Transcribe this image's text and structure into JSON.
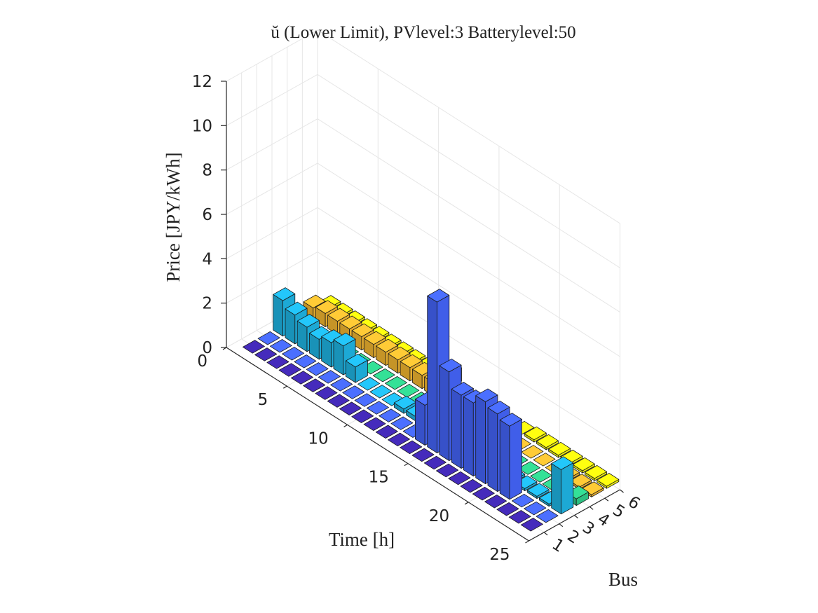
{
  "chart_data": {
    "type": "bar3d",
    "title": "ŭ (Lower Limit), PVlevel:3 Batterylevel:50",
    "xlabel": "Time [h]",
    "ylabel": "Bus",
    "zlabel": "Price [JPY/kWh]",
    "time_range": [
      0,
      25
    ],
    "bus_range": [
      0,
      6
    ],
    "zlim": [
      0,
      12
    ],
    "time_ticks": [
      0,
      5,
      10,
      15,
      20,
      25
    ],
    "bus_ticks": [
      1,
      2,
      3,
      4,
      5,
      6
    ],
    "z_ticks": [
      0,
      2,
      4,
      6,
      8,
      10,
      12
    ],
    "grid": true,
    "hours": [
      1,
      2,
      3,
      4,
      5,
      6,
      7,
      8,
      9,
      10,
      11,
      12,
      13,
      14,
      15,
      16,
      17,
      18,
      19,
      20,
      21,
      22,
      23,
      24
    ],
    "series": [
      {
        "bus": 1,
        "color": "#3e26a8",
        "values": [
          0,
          0,
          0,
          0,
          0,
          0,
          0,
          0,
          0,
          0,
          0,
          0,
          0,
          0,
          0,
          0,
          0,
          0,
          0,
          0,
          0,
          0,
          0,
          0
        ]
      },
      {
        "bus": 2,
        "color": "#4363f5",
        "values": [
          0,
          0,
          0,
          0,
          0,
          0,
          0,
          0,
          0,
          0,
          0,
          0,
          0,
          1.8,
          6.8,
          4.0,
          3.3,
          3.3,
          3.7,
          3.5,
          3.3,
          0.0,
          0.0,
          0.0
        ]
      },
      {
        "bus": 3,
        "color": "#1fb2e0",
        "values": [
          1.6,
          1.3,
          1.1,
          0.9,
          1.1,
          1.3,
          0.7,
          0.0,
          0.0,
          0.0,
          0.2,
          0.2,
          0.2,
          0.2,
          0.2,
          0.2,
          0.2,
          0.1,
          0.1,
          0.1,
          0.1,
          0.1,
          0.1,
          2.0
        ]
      },
      {
        "bus": 4,
        "color": "#2ec987",
        "values": [
          0,
          0,
          0,
          0,
          0,
          0,
          0,
          0,
          0,
          0,
          0,
          0,
          0,
          0,
          0,
          0,
          0,
          0,
          0,
          0,
          0,
          0,
          0,
          0.3
        ]
      },
      {
        "bus": 5,
        "color": "#f0b530",
        "values": [
          0.5,
          0.6,
          0.6,
          0.6,
          0.6,
          0.6,
          0.6,
          0.6,
          0.6,
          0.6,
          0.6,
          0.6,
          0.5,
          0.3,
          0.0,
          0.0,
          0.0,
          0.0,
          0.0,
          0.0,
          0.0,
          0.1,
          0.1,
          0.1
        ]
      },
      {
        "bus": 6,
        "color": "#f9fb0e",
        "values": [
          0.1,
          0.1,
          0.1,
          0.1,
          0.1,
          0.1,
          0.1,
          0.1,
          0.1,
          0.1,
          0.6,
          0.0,
          0.0,
          0.0,
          0.0,
          0.0,
          0.0,
          0.1,
          0.1,
          0.1,
          0.1,
          0.1,
          0.1,
          0.1
        ]
      }
    ]
  }
}
